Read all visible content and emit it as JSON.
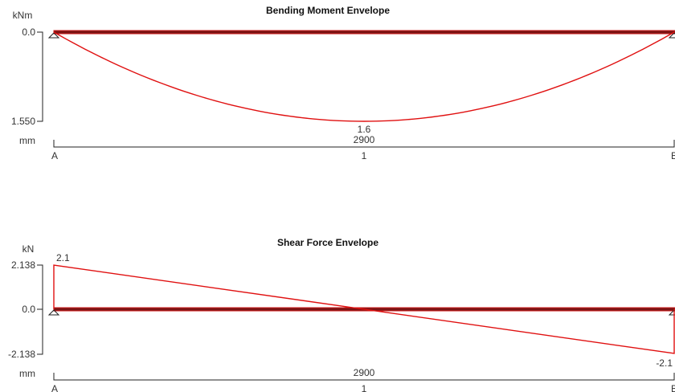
{
  "chart_data": [
    {
      "type": "line",
      "title": "Bending Moment Envelope",
      "unit": "kNm",
      "y_ticks": [
        "0.0",
        "1.550"
      ],
      "ylim": [
        0.0,
        1.55
      ],
      "y_inverted": true,
      "x_unit": "mm",
      "span_length_label": "2900",
      "span_length": 2900,
      "supports": [
        "A",
        "B"
      ],
      "midspan_label": "1",
      "series": [
        {
          "x": [
            0,
            362.5,
            725,
            1087.5,
            1450,
            1812.5,
            2175,
            2537.5,
            2900
          ],
          "y": [
            0.0,
            0.678,
            1.163,
            1.453,
            1.55,
            1.453,
            1.163,
            0.678,
            0.0
          ]
        }
      ],
      "annotations": [
        {
          "x": 1450,
          "y": 1.55,
          "text": "1.6"
        }
      ]
    },
    {
      "type": "line",
      "title": "Shear Force Envelope",
      "unit": "kN",
      "y_ticks": [
        "2.138",
        "0.0",
        "-2.138"
      ],
      "ylim": [
        -2.138,
        2.138
      ],
      "x_unit": "mm",
      "span_length_label": "2900",
      "span_length": 2900,
      "supports": [
        "A",
        "B"
      ],
      "midspan_label": "1",
      "series": [
        {
          "x": [
            0,
            0,
            2900,
            2900
          ],
          "y": [
            0.0,
            2.138,
            -2.138,
            0.0
          ]
        }
      ],
      "annotations": [
        {
          "x": 0,
          "y": 2.138,
          "text": "2.1"
        },
        {
          "x": 2900,
          "y": -2.138,
          "text": "-2.1"
        }
      ]
    }
  ],
  "colors": {
    "curve": "#e01010",
    "beam_fill": "#7a1515",
    "beam_edge": "#cc1a1a",
    "axis": "#222222"
  }
}
